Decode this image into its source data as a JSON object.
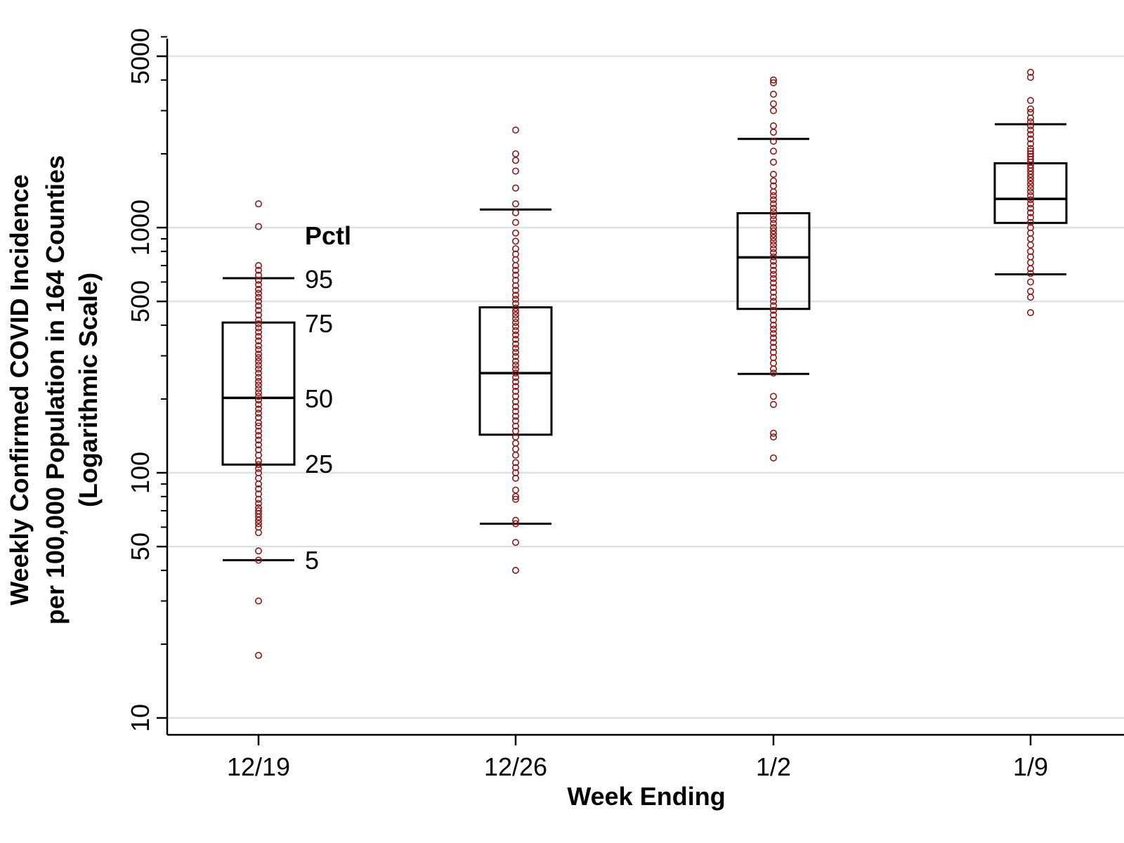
{
  "chart_data": {
    "type": "box",
    "y_scale": "log",
    "ylim": [
      10,
      6000
    ],
    "y_ticks": [
      10,
      50,
      100,
      500,
      1000,
      5000
    ],
    "y_tick_labels": [
      "10",
      "50",
      "100",
      "500",
      "1000",
      "5000"
    ],
    "grid": true,
    "xlabel": "Week Ending",
    "ylabel_lines": [
      "Weekly Confirmed COVID Incidence",
      "per 100,000 Population in 164 Counties",
      "(Logarithmic Scale)"
    ],
    "categories": [
      "12/19",
      "12/26",
      "1/2",
      "1/9"
    ],
    "percentile_legend": {
      "title": "Pctl",
      "labels": [
        "95",
        "75",
        "50",
        "25",
        "5"
      ]
    },
    "boxes": [
      {
        "category": "12/19",
        "p5": 44,
        "p25": 108,
        "p50": 202,
        "p75": 410,
        "p95": 622
      },
      {
        "category": "12/26",
        "p5": 62,
        "p25": 143,
        "p50": 255,
        "p75": 473,
        "p95": 1185
      },
      {
        "category": "1/2",
        "p5": 253,
        "p25": 466,
        "p50": 756,
        "p75": 1145,
        "p95": 2300
      },
      {
        "category": "1/9",
        "p5": 645,
        "p25": 1045,
        "p50": 1310,
        "p75": 1830,
        "p95": 2640
      }
    ],
    "points": [
      {
        "category": "12/19",
        "values": [
          18,
          30,
          44,
          48,
          57,
          60,
          62,
          64,
          66,
          68,
          70,
          72,
          75,
          78,
          82,
          86,
          90,
          95,
          100,
          104,
          108,
          112,
          118,
          124,
          130,
          136,
          142,
          148,
          155,
          160,
          168,
          175,
          182,
          190,
          198,
          205,
          212,
          220,
          228,
          236,
          245,
          255,
          265,
          275,
          285,
          295,
          305,
          318,
          330,
          345,
          360,
          375,
          390,
          405,
          420,
          440,
          460,
          480,
          500,
          520,
          540,
          560,
          585,
          610,
          640,
          670,
          700,
          1010,
          1250
        ]
      },
      {
        "category": "12/26",
        "values": [
          40,
          52,
          62,
          64,
          78,
          80,
          85,
          95,
          100,
          105,
          110,
          118,
          125,
          132,
          140,
          148,
          155,
          163,
          170,
          178,
          186,
          195,
          205,
          215,
          225,
          235,
          245,
          255,
          265,
          275,
          285,
          298,
          310,
          322,
          335,
          350,
          365,
          380,
          395,
          410,
          425,
          440,
          455,
          470,
          490,
          510,
          530,
          555,
          580,
          610,
          640,
          670,
          700,
          740,
          780,
          820,
          880,
          950,
          1050,
          1150,
          1250,
          1450,
          1700,
          1880,
          2000,
          2500
        ]
      },
      {
        "category": "1/2",
        "values": [
          115,
          140,
          145,
          190,
          205,
          255,
          265,
          280,
          295,
          310,
          325,
          340,
          355,
          370,
          385,
          400,
          420,
          440,
          460,
          480,
          500,
          520,
          545,
          570,
          595,
          620,
          645,
          670,
          700,
          730,
          760,
          790,
          820,
          850,
          880,
          910,
          940,
          970,
          1000,
          1040,
          1080,
          1120,
          1160,
          1200,
          1250,
          1300,
          1350,
          1400,
          1480,
          1550,
          1650,
          1850,
          2050,
          2250,
          2450,
          2600,
          3000,
          3200,
          3500,
          3900,
          4000
        ]
      },
      {
        "category": "1/9",
        "values": [
          450,
          520,
          550,
          600,
          650,
          680,
          720,
          760,
          800,
          850,
          900,
          950,
          1000,
          1050,
          1100,
          1150,
          1200,
          1250,
          1300,
          1350,
          1400,
          1450,
          1500,
          1550,
          1600,
          1650,
          1700,
          1750,
          1800,
          1850,
          1900,
          1950,
          2000,
          2050,
          2100,
          2200,
          2300,
          2400,
          2500,
          2600,
          2700,
          2800,
          2950,
          3050,
          3300,
          4100,
          4300
        ]
      }
    ]
  },
  "colors": {
    "point": "#8b1a1a",
    "grid": "#dbe3e6",
    "box": "#000000"
  }
}
